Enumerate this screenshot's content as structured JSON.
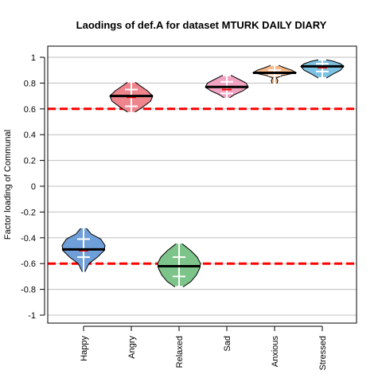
{
  "chart_data": {
    "type": "violin",
    "title": "Laodings of def.A for dataset MTURK DAILY DIARY",
    "xlabel": "",
    "ylabel": "Factor loading of Communal",
    "ylim": [
      -1.0,
      1.0
    ],
    "yticks": [
      -1,
      -0.8,
      -0.6,
      -0.4,
      -0.2,
      0,
      0.2,
      0.4,
      0.6,
      0.8,
      1
    ],
    "ytick_labels": [
      "-1",
      "-0.8",
      "-0.6",
      "-0.4",
      "-0.2",
      "0",
      "0.2",
      "0.4",
      "0.6",
      "0.8",
      "1"
    ],
    "grid": "horizontal",
    "reference_lines": [
      {
        "y": 0.6,
        "color": "#ff0000",
        "style": "dashed"
      },
      {
        "y": -0.6,
        "color": "#ff0000",
        "style": "dashed"
      }
    ],
    "categories": [
      "Happy",
      "Angry",
      "Relaxed",
      "Sad",
      "Anxious",
      "Stressed"
    ],
    "series": [
      {
        "category": "Happy",
        "color": "#6f9fd8",
        "min": -0.67,
        "q1": -0.55,
        "median": -0.5,
        "q3": -0.41,
        "max": -0.32,
        "mean": -0.49,
        "profile": [
          [
            -0.67,
            0.04
          ],
          [
            -0.6,
            0.25
          ],
          [
            -0.55,
            0.65
          ],
          [
            -0.5,
            0.95
          ],
          [
            -0.46,
            1.0
          ],
          [
            -0.41,
            0.8
          ],
          [
            -0.37,
            0.35
          ],
          [
            -0.32,
            0.1
          ]
        ]
      },
      {
        "category": "Angry",
        "color": "#f0848d",
        "min": 0.57,
        "q1": 0.62,
        "median": 0.69,
        "q3": 0.75,
        "max": 0.81,
        "mean": 0.7,
        "profile": [
          [
            0.57,
            0.12
          ],
          [
            0.61,
            0.5
          ],
          [
            0.66,
            0.9
          ],
          [
            0.7,
            1.0
          ],
          [
            0.74,
            0.75
          ],
          [
            0.78,
            0.4
          ],
          [
            0.81,
            0.15
          ]
        ]
      },
      {
        "category": "Relaxed",
        "color": "#7cc489",
        "min": -0.78,
        "q1": -0.7,
        "median": -0.62,
        "q3": -0.55,
        "max": -0.44,
        "mean": -0.62,
        "profile": [
          [
            -0.78,
            0.2
          ],
          [
            -0.74,
            0.55
          ],
          [
            -0.69,
            0.8
          ],
          [
            -0.64,
            0.95
          ],
          [
            -0.6,
            1.0
          ],
          [
            -0.55,
            0.85
          ],
          [
            -0.5,
            0.55
          ],
          [
            -0.44,
            0.1
          ]
        ]
      },
      {
        "category": "Sad",
        "color": "#f2a3c2",
        "min": 0.68,
        "q1": 0.72,
        "median": 0.75,
        "q3": 0.81,
        "max": 0.86,
        "mean": 0.77,
        "profile": [
          [
            0.68,
            0.08
          ],
          [
            0.71,
            0.35
          ],
          [
            0.74,
            0.75
          ],
          [
            0.77,
            1.0
          ],
          [
            0.8,
            0.9
          ],
          [
            0.83,
            0.55
          ],
          [
            0.86,
            0.2
          ]
        ]
      },
      {
        "category": "Anxious",
        "color": "#f6b98a",
        "min": 0.79,
        "q1": 0.86,
        "median": 0.88,
        "q3": 0.9,
        "max": 0.94,
        "mean": 0.88,
        "profile": [
          [
            0.79,
            0.1
          ],
          [
            0.82,
            0.15
          ],
          [
            0.84,
            0.08
          ],
          [
            0.86,
            0.4
          ],
          [
            0.88,
            1.0
          ],
          [
            0.9,
            0.8
          ],
          [
            0.92,
            0.45
          ],
          [
            0.94,
            0.15
          ]
        ]
      },
      {
        "category": "Stressed",
        "color": "#7dc2e3",
        "min": 0.84,
        "q1": 0.89,
        "median": 0.92,
        "q3": 0.95,
        "max": 0.98,
        "mean": 0.93,
        "profile": [
          [
            0.84,
            0.2
          ],
          [
            0.87,
            0.5
          ],
          [
            0.9,
            0.85
          ],
          [
            0.93,
            1.0
          ],
          [
            0.95,
            0.85
          ],
          [
            0.97,
            0.5
          ],
          [
            0.98,
            0.2
          ]
        ]
      }
    ]
  }
}
